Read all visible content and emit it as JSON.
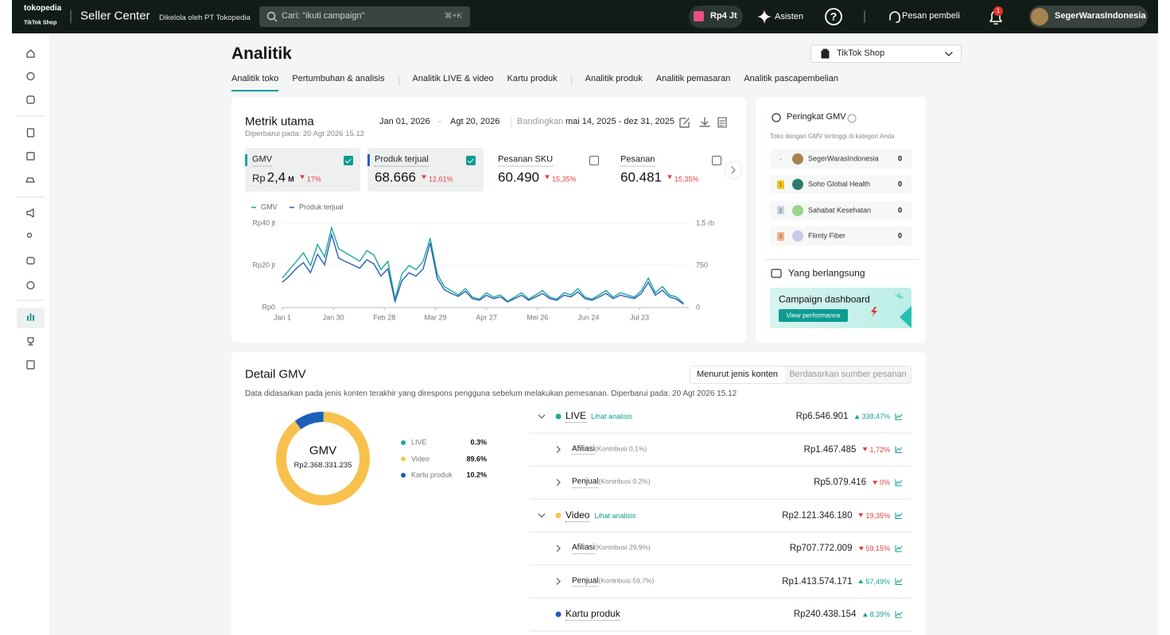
{
  "top_bar": {
    "logo": "tokopedia",
    "logo_sub": "TikTok Shop",
    "app_name": "Seller Center",
    "managed_by": "Dikelola oleh PT Tokopedia",
    "search_placeholder": "Cari: \"ikuti campaign\"",
    "search_shortcut": "⌘+K",
    "balance": "Rp4 Jt",
    "assistant": "Asisten",
    "help": "?",
    "messages": "Pesan pembeli",
    "notification_count": "1",
    "user": "SegerWarasIndonesia"
  },
  "page": {
    "title": "Analitik",
    "shop_select": "TikTok Shop",
    "tab_groups": [
      [
        {
          "label": "Analitik toko",
          "active": true
        },
        {
          "label": "Pertumbuhan & analisis",
          "active": false
        }
      ],
      [
        {
          "label": "Analitik LIVE & video",
          "active": false
        },
        {
          "label": "Kartu produk",
          "active": false
        }
      ],
      [
        {
          "label": "Analitik produk",
          "active": false
        },
        {
          "label": "Analitik pemasaran",
          "active": false
        },
        {
          "label": "Analitik pascapembelian",
          "active": false
        }
      ]
    ]
  },
  "metrics": {
    "title": "Metrik utama",
    "updated": "Diperbarui pada: 20 Agt 2026 15.12",
    "date_start": "Jan 01, 2026",
    "date_sep": "-",
    "date_end": "Agt 20, 2026",
    "compare_label": "Bandingkan",
    "compare_range": "mai 14, 2025 - dez 31, 2025",
    "cards": [
      {
        "name": "GMV",
        "currency": "Rp",
        "value": "2,4",
        "unit": "M",
        "change": "17%",
        "direction": "down",
        "selected": true,
        "color": "#1ea79c"
      },
      {
        "name": "Produk terjual",
        "value": "68.666",
        "change": "12,61%",
        "direction": "down",
        "selected": true,
        "color": "#2a5fb5"
      },
      {
        "name": "Pesanan SKU",
        "value": "60.490",
        "change": "15,35%",
        "direction": "down",
        "selected": false
      },
      {
        "name": "Pesanan",
        "value": "60.481",
        "change": "15,35%",
        "direction": "down",
        "selected": false
      }
    ]
  },
  "chart_data": [
    {
      "type": "line",
      "grid": true,
      "x": [
        0,
        4,
        8,
        12,
        16,
        20,
        24,
        28,
        32,
        36,
        40,
        44,
        48,
        52,
        56,
        60,
        64,
        68,
        72,
        76,
        80,
        84,
        88,
        92,
        96,
        100,
        104,
        108,
        112,
        116,
        120,
        124,
        128,
        132,
        136,
        140,
        144,
        148,
        152,
        156,
        160,
        164,
        168,
        172,
        176,
        180,
        184,
        188,
        192,
        196,
        200,
        204,
        208,
        212,
        216,
        220,
        224,
        228
      ],
      "xlim": [
        0,
        231
      ],
      "xticks": [
        {
          "value": 0,
          "label": "Jan 1"
        },
        {
          "value": 29,
          "label": "Jan 30"
        },
        {
          "value": 58,
          "label": "Feb 28"
        },
        {
          "value": 87,
          "label": "Mar 29"
        },
        {
          "value": 116,
          "label": "Apr 27"
        },
        {
          "value": 145,
          "label": "Mei 26"
        },
        {
          "value": 174,
          "label": "Jun 24"
        },
        {
          "value": 203,
          "label": "Jul 23"
        }
      ],
      "ylim": [
        0,
        40000000
      ],
      "yticks": [
        {
          "value": 0,
          "label": "Rp0"
        },
        {
          "value": 20000000,
          "label": "Rp20 jt"
        },
        {
          "value": 40000000,
          "label": "Rp40 jt"
        }
      ],
      "y2lim": [
        0,
        1500
      ],
      "y2ticks": [
        0,
        750,
        {
          "value": 1500,
          "label": "1,5 rb"
        }
      ],
      "series": [
        {
          "name": "GMV",
          "color": "#1ea79c",
          "values": [
            14000000,
            18000000,
            22000000,
            26000000,
            20000000,
            30000000,
            24000000,
            38000000,
            28000000,
            26000000,
            24000000,
            22000000,
            27000000,
            25000000,
            18000000,
            22000000,
            4000000,
            16000000,
            20000000,
            18000000,
            22000000,
            33000000,
            16000000,
            10000000,
            8000000,
            6000000,
            9000000,
            5000000,
            4000000,
            7000000,
            5000000,
            6000000,
            3000000,
            5000000,
            7000000,
            4000000,
            6000000,
            8000000,
            5000000,
            4000000,
            7000000,
            6000000,
            9000000,
            5000000,
            4000000,
            6000000,
            8000000,
            5000000,
            7000000,
            6000000,
            5000000,
            8000000,
            14000000,
            7000000,
            10000000,
            6000000,
            5000000,
            2000000
          ]
        },
        {
          "name": "Produk terjual",
          "color": "#2a5fb5",
          "axis": "y2",
          "values": [
            450,
            560,
            700,
            800,
            620,
            950,
            760,
            1300,
            880,
            820,
            760,
            700,
            850,
            780,
            560,
            690,
            110,
            480,
            620,
            560,
            690,
            1150,
            520,
            320,
            250,
            200,
            290,
            160,
            130,
            220,
            160,
            190,
            100,
            160,
            220,
            130,
            190,
            250,
            160,
            130,
            220,
            190,
            280,
            160,
            130,
            190,
            250,
            160,
            220,
            190,
            160,
            250,
            450,
            220,
            310,
            190,
            150,
            60
          ]
        }
      ]
    },
    {
      "type": "pie",
      "title": "GMV",
      "total": "Rp2.368.331.235",
      "categories": [
        "LIVE",
        "Video",
        "Kartu produk"
      ],
      "values": [
        0.3,
        89.6,
        10.2
      ],
      "value_labels": [
        "0.3%",
        "89.6%",
        "10.2%"
      ],
      "colors": [
        "#1ea79c",
        "#f8c14e",
        "#1c5fb8"
      ]
    }
  ],
  "ranking": {
    "title": "Peringkat GMV",
    "subtitle": "Toko dengan GMV tertinggi di kategori Anda",
    "rows": [
      {
        "rank": "-",
        "name": "SegerWarasIndonesia",
        "value": "0"
      },
      {
        "rank": "1",
        "name": "Soho Global Health",
        "value": "0"
      },
      {
        "rank": "2",
        "name": "Sahabat Kesehatan",
        "value": "0"
      },
      {
        "rank": "3",
        "name": "Flimty Fiber",
        "value": "0"
      }
    ]
  },
  "ongoing": {
    "title": "Yang berlangsung",
    "banner_title": "Campaign dashboard",
    "banner_button": "View performance"
  },
  "gmv_detail": {
    "title": "Detail GMV",
    "toggle": [
      "Menurut jenis konten",
      "Berdasarkan sumber pesanan"
    ],
    "note": "Data didasarkan pada jenis konten terakhir yang direspons pengguna sebelum melakukan pemesanan.  Diperbarui pada: 20 Agt 2026 15.12",
    "rows": [
      {
        "level": 1,
        "expandable": true,
        "dot_color": "#1ea79c",
        "name": "LIVE",
        "link": "Lihat analisis",
        "value": "Rp6.546.901",
        "change": "338,47%",
        "direction": "up"
      },
      {
        "level": 2,
        "expandable": true,
        "name": "Afiliasi",
        "contribution": "(Kontribusi 0,1%)",
        "value": "Rp1.467.485",
        "change": "1,72%",
        "direction": "down"
      },
      {
        "level": 2,
        "expandable": true,
        "name": "Penjual",
        "contribution": "(Kontribusi 0,2%)",
        "value": "Rp5.079.416",
        "change": "0%",
        "direction": "down"
      },
      {
        "level": 1,
        "expandable": true,
        "dot_color": "#f8c14e",
        "name": "Video",
        "link": "Lihat analisis",
        "value": "Rp2.121.346.180",
        "change": "19,35%",
        "direction": "down"
      },
      {
        "level": 2,
        "expandable": true,
        "name": "Afiliasi",
        "contribution": "(Kontribusi 29,9%)",
        "value": "Rp707.772.009",
        "change": "59,15%",
        "direction": "down"
      },
      {
        "level": 2,
        "expandable": true,
        "name": "Penjual",
        "contribution": "(Kontribusi 59,7%)",
        "value": "Rp1.413.574.171",
        "change": "57,49%",
        "direction": "up"
      },
      {
        "level": 1,
        "expandable": false,
        "dot_color": "#1c5fb8",
        "name": "Kartu produk",
        "value": "Rp240.438.154",
        "change": "8,39%",
        "direction": "up"
      }
    ]
  }
}
